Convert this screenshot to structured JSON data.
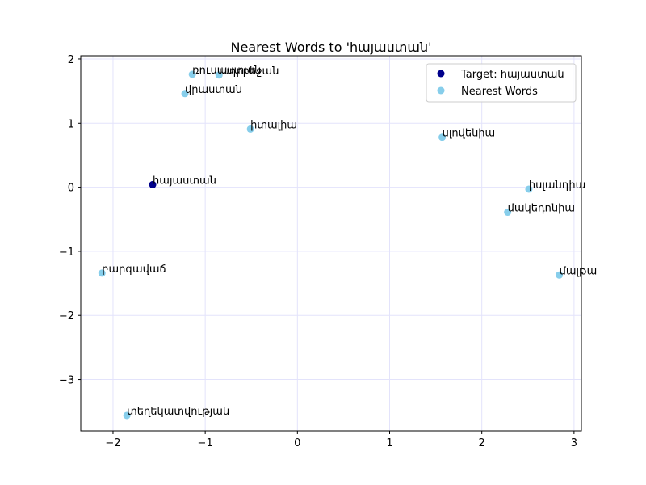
{
  "chart_data": {
    "type": "scatter",
    "title": "Nearest Words to 'հայաստան'",
    "xlabel": "",
    "ylabel": "",
    "xlim": [
      -2.35,
      3.08
    ],
    "ylim": [
      -3.8,
      2.05
    ],
    "xticks": [
      -2,
      -1,
      0,
      1,
      2,
      3
    ],
    "yticks": [
      -3,
      -2,
      -1,
      0,
      1,
      2
    ],
    "xtick_labels": [
      "−2",
      "−1",
      "0",
      "1",
      "2",
      "3"
    ],
    "ytick_labels": [
      "−3",
      "−2",
      "−1",
      "0",
      "1",
      "2"
    ],
    "grid": true,
    "legend_position": "top-right",
    "series": [
      {
        "name": "Target: հայաստան",
        "color": "#00008b",
        "points": [
          {
            "x": -1.57,
            "y": 0.04,
            "label": "հայաստան"
          }
        ]
      },
      {
        "name": "Nearest Words",
        "color": "#87ceeb",
        "points": [
          {
            "x": -1.14,
            "y": 1.76,
            "label": "ռուսաստան"
          },
          {
            "x": -0.85,
            "y": 1.75,
            "label": "ադրբեջան"
          },
          {
            "x": -1.22,
            "y": 1.46,
            "label": "վրաստան"
          },
          {
            "x": -0.51,
            "y": 0.91,
            "label": "իտալիա"
          },
          {
            "x": 1.57,
            "y": 0.78,
            "label": "սլովենիա"
          },
          {
            "x": 2.51,
            "y": -0.03,
            "label": "իսլանդիա"
          },
          {
            "x": 2.28,
            "y": -0.39,
            "label": "մակեդոնիա"
          },
          {
            "x": -2.12,
            "y": -1.34,
            "label": "բարգավաճ"
          },
          {
            "x": 2.84,
            "y": -1.37,
            "label": "մալթա"
          },
          {
            "x": -1.85,
            "y": -3.56,
            "label": "տեղեկատվության"
          }
        ]
      }
    ]
  }
}
